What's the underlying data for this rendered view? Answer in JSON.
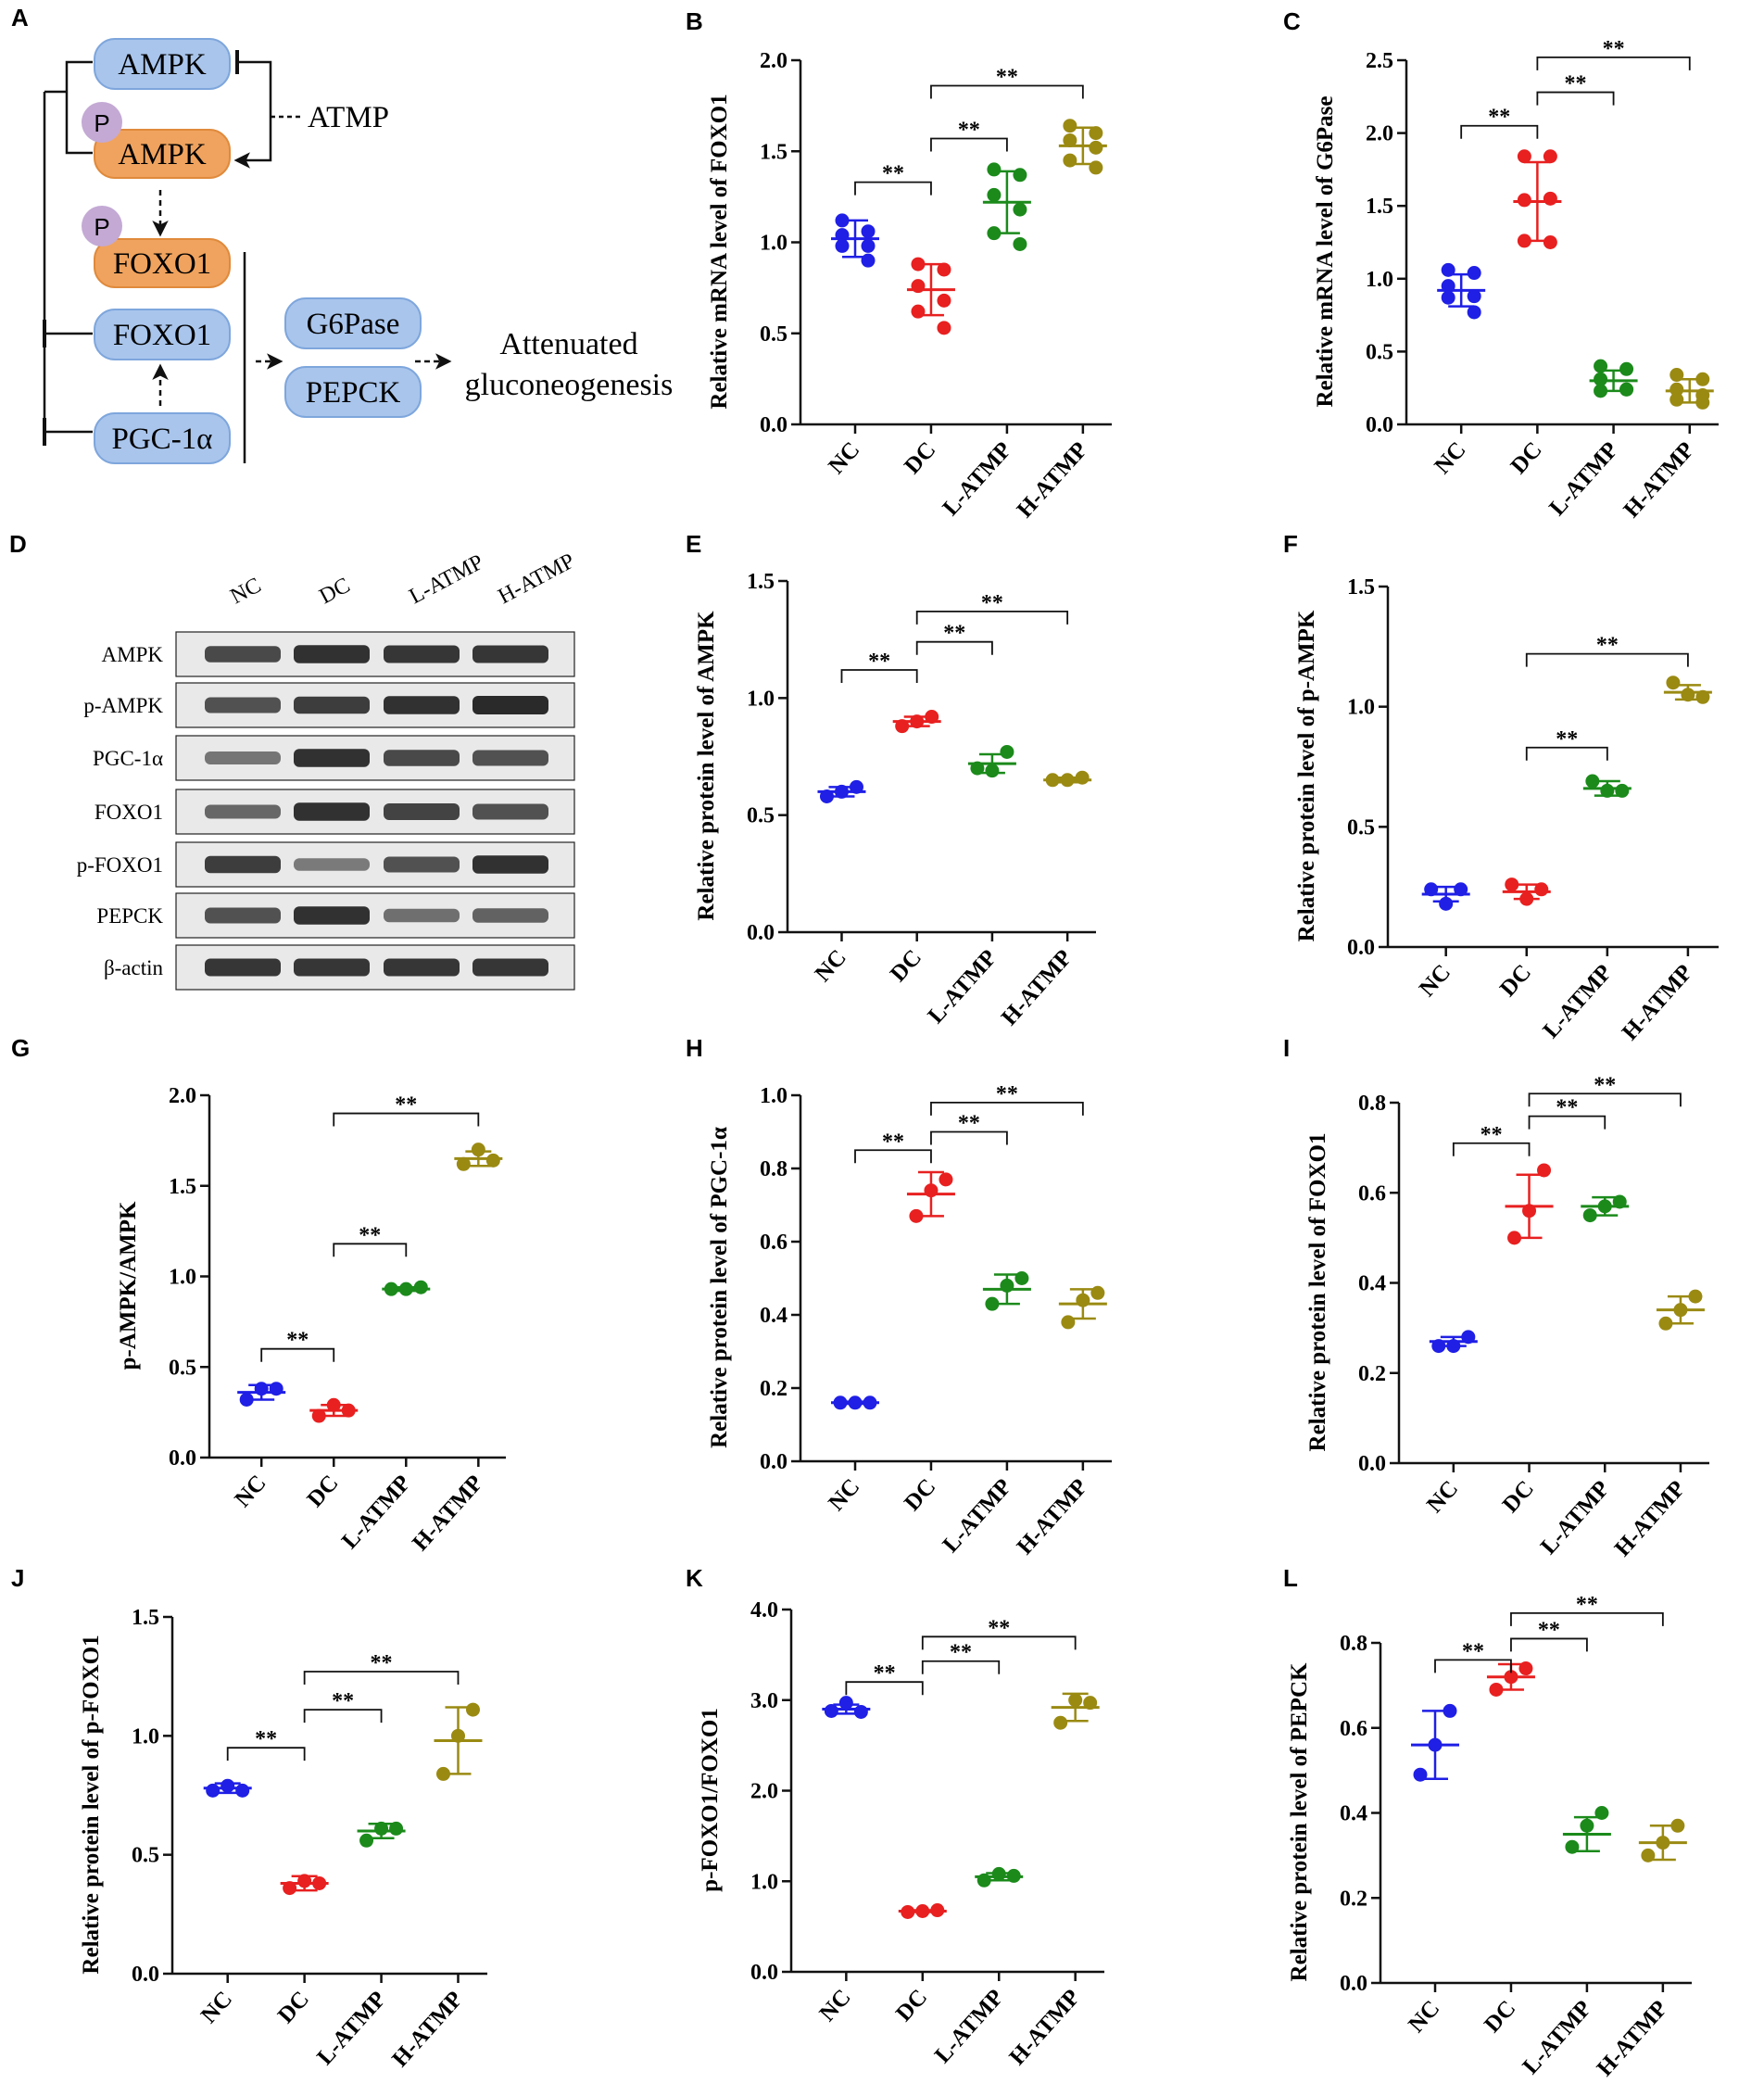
{
  "colors": {
    "nc": "#1f1fe6",
    "dc": "#e82020",
    "latmp": "#1b8a1b",
    "hatmp": "#9a8a12",
    "blue_node": "#a9c5ec",
    "blue_node_edge": "#7ea6dc",
    "orange_node": "#f0a35e",
    "orange_node_edge": "#e08a3c",
    "phospho": "#c3a9d4",
    "blot_bg": "#e9e9e9",
    "band": "#2a2a2a"
  },
  "panel_a": {
    "letter": "A",
    "nodes": {
      "ampk": "AMPK",
      "p_ampk": "AMPK",
      "foxo1_p": "FOXO1",
      "foxo1": "FOXO1",
      "pgc": "PGC-1α",
      "g6pase": "G6Pase",
      "pepck": "PEPCK"
    },
    "phospho_label": "P",
    "atmp": "ATMP",
    "outcome_line1": "Attenuated",
    "outcome_line2": "gluconeogenesis"
  },
  "panel_d": {
    "letter": "D",
    "groups": [
      "NC",
      "DC",
      "L-ATMP",
      "H-ATMP"
    ],
    "rows": [
      "AMPK",
      "p-AMPK",
      "PGC-1α",
      "FOXO1",
      "p-FOXO1",
      "PEPCK",
      "β-actin"
    ],
    "band_intensity": [
      [
        0.75,
        0.95,
        0.9,
        0.9
      ],
      [
        0.7,
        0.85,
        0.95,
        1.0
      ],
      [
        0.4,
        0.95,
        0.75,
        0.7
      ],
      [
        0.5,
        0.95,
        0.8,
        0.7
      ],
      [
        0.85,
        0.35,
        0.7,
        0.95
      ],
      [
        0.7,
        0.95,
        0.45,
        0.55
      ],
      [
        0.9,
        0.9,
        0.9,
        0.9
      ]
    ]
  },
  "chart_data": [
    {
      "type": "scatter",
      "letter": "B",
      "ylabel": "Relative mRNA level of FOXO1",
      "categories": [
        "NC",
        "DC",
        "L-ATMP",
        "H-ATMP"
      ],
      "ylim": [
        0,
        2.0
      ],
      "ticks": [
        "0.0",
        "0.5",
        "1.0",
        "1.5",
        "2.0"
      ],
      "means": [
        1.02,
        0.74,
        1.22,
        1.53
      ],
      "sd": [
        0.1,
        0.14,
        0.17,
        0.1
      ],
      "points": [
        [
          1.12,
          1.06,
          1.04,
          0.98,
          0.98,
          0.9
        ],
        [
          0.88,
          0.85,
          0.76,
          0.68,
          0.62,
          0.53
        ],
        [
          1.4,
          1.37,
          1.26,
          1.18,
          1.05,
          0.99
        ],
        [
          1.64,
          1.6,
          1.56,
          1.52,
          1.45,
          1.41
        ]
      ],
      "sig": [
        {
          "from": 0,
          "to": 1,
          "label": "**",
          "y": 1.33
        },
        {
          "from": 1,
          "to": 2,
          "label": "**",
          "y": 1.57
        },
        {
          "from": 1,
          "to": 3,
          "label": "**",
          "y": 1.86
        }
      ]
    },
    {
      "type": "scatter",
      "letter": "C",
      "ylabel": "Relative mRNA level of G6Pase",
      "categories": [
        "NC",
        "DC",
        "L-ATMP",
        "H-ATMP"
      ],
      "ylim": [
        0,
        2.5
      ],
      "ticks": [
        "0.0",
        "0.5",
        "1.0",
        "1.5",
        "2.0",
        "2.5"
      ],
      "means": [
        0.92,
        1.53,
        0.3,
        0.23
      ],
      "sd": [
        0.11,
        0.27,
        0.07,
        0.08
      ],
      "points": [
        [
          1.06,
          1.04,
          0.95,
          0.88,
          0.87,
          0.77
        ],
        [
          1.84,
          1.84,
          1.54,
          1.55,
          1.26,
          1.25
        ],
        [
          0.4,
          0.38,
          0.31,
          0.24,
          0.23,
          0.24
        ],
        [
          0.34,
          0.31,
          0.24,
          0.2,
          0.17,
          0.15
        ]
      ],
      "sig": [
        {
          "from": 0,
          "to": 1,
          "label": "**",
          "y": 2.05
        },
        {
          "from": 1,
          "to": 2,
          "label": "**",
          "y": 2.28
        },
        {
          "from": 1,
          "to": 3,
          "label": "**",
          "y": 2.52
        }
      ]
    },
    {
      "type": "scatter",
      "letter": "E",
      "ylabel": "Relative protein level of AMPK",
      "categories": [
        "NC",
        "DC",
        "L-ATMP",
        "H-ATMP"
      ],
      "ylim": [
        0,
        1.5
      ],
      "ticks": [
        "0.0",
        "0.5",
        "1.0",
        "1.5"
      ],
      "means": [
        0.6,
        0.9,
        0.72,
        0.65
      ],
      "sd": [
        0.02,
        0.02,
        0.04,
        0.01
      ],
      "points": [
        [
          0.58,
          0.6,
          0.62
        ],
        [
          0.88,
          0.9,
          0.92
        ],
        [
          0.7,
          0.69,
          0.77
        ],
        [
          0.65,
          0.65,
          0.66
        ]
      ],
      "sig": [
        {
          "from": 0,
          "to": 1,
          "label": "**",
          "y": 1.12
        },
        {
          "from": 1,
          "to": 2,
          "label": "**",
          "y": 1.24
        },
        {
          "from": 1,
          "to": 3,
          "label": "**",
          "y": 1.37
        }
      ]
    },
    {
      "type": "scatter",
      "letter": "F",
      "ylabel": "Relative protein level of p-AMPK",
      "categories": [
        "NC",
        "DC",
        "L-ATMP",
        "H-ATMP"
      ],
      "ylim": [
        0,
        1.5
      ],
      "ticks": [
        "0.0",
        "0.5",
        "1.0",
        "1.5"
      ],
      "means": [
        0.22,
        0.23,
        0.66,
        1.06
      ],
      "sd": [
        0.03,
        0.03,
        0.03,
        0.03
      ],
      "points": [
        [
          0.24,
          0.18,
          0.24
        ],
        [
          0.26,
          0.2,
          0.24
        ],
        [
          0.69,
          0.65,
          0.65
        ],
        [
          1.1,
          1.05,
          1.04
        ]
      ],
      "sig": [
        {
          "from": 1,
          "to": 2,
          "label": "**",
          "y": 0.83
        },
        {
          "from": 1,
          "to": 3,
          "label": "**",
          "y": 1.22
        }
      ]
    },
    {
      "type": "scatter",
      "letter": "G",
      "ylabel": "p-AMPK/AMPK",
      "categories": [
        "NC",
        "DC",
        "L-ATMP",
        "H-ATMP"
      ],
      "ylim": [
        0,
        2.0
      ],
      "ticks": [
        "0.0",
        "0.5",
        "1.0",
        "1.5",
        "2.0"
      ],
      "means": [
        0.36,
        0.26,
        0.93,
        1.65
      ],
      "sd": [
        0.04,
        0.03,
        0.01,
        0.04
      ],
      "points": [
        [
          0.32,
          0.38,
          0.38
        ],
        [
          0.23,
          0.29,
          0.26
        ],
        [
          0.93,
          0.93,
          0.94
        ],
        [
          1.62,
          1.7,
          1.64
        ]
      ],
      "sig": [
        {
          "from": 0,
          "to": 1,
          "label": "**",
          "y": 0.6
        },
        {
          "from": 1,
          "to": 2,
          "label": "**",
          "y": 1.18
        },
        {
          "from": 1,
          "to": 3,
          "label": "**",
          "y": 1.9
        }
      ]
    },
    {
      "type": "scatter",
      "letter": "H",
      "ylabel": "Relative protein level of PGC-1α",
      "categories": [
        "NC",
        "DC",
        "L-ATMP",
        "H-ATMP"
      ],
      "ylim": [
        0,
        1.0
      ],
      "ticks": [
        "0.0",
        "0.2",
        "0.4",
        "0.6",
        "0.8",
        "1.0"
      ],
      "means": [
        0.16,
        0.73,
        0.47,
        0.43
      ],
      "sd": [
        0.003,
        0.06,
        0.04,
        0.04
      ],
      "points": [
        [
          0.16,
          0.16,
          0.16
        ],
        [
          0.67,
          0.74,
          0.77
        ],
        [
          0.43,
          0.48,
          0.5
        ],
        [
          0.38,
          0.44,
          0.46
        ]
      ],
      "sig": [
        {
          "from": 0,
          "to": 1,
          "label": "**",
          "y": 0.85
        },
        {
          "from": 1,
          "to": 2,
          "label": "**",
          "y": 0.9
        },
        {
          "from": 1,
          "to": 3,
          "label": "**",
          "y": 0.98
        }
      ]
    },
    {
      "type": "scatter",
      "letter": "I",
      "ylabel": "Relative protein level of FOXO1",
      "categories": [
        "NC",
        "DC",
        "L-ATMP",
        "H-ATMP"
      ],
      "ylim": [
        0,
        0.8
      ],
      "ticks": [
        "0.0",
        "0.2",
        "0.4",
        "0.6",
        "0.8"
      ],
      "means": [
        0.27,
        0.57,
        0.57,
        0.34
      ],
      "sd": [
        0.01,
        0.07,
        0.02,
        0.03
      ],
      "points": [
        [
          0.26,
          0.26,
          0.28
        ],
        [
          0.5,
          0.56,
          0.65
        ],
        [
          0.55,
          0.57,
          0.58
        ],
        [
          0.31,
          0.34,
          0.37
        ]
      ],
      "sig": [
        {
          "from": 0,
          "to": 1,
          "label": "**",
          "y": 0.71
        },
        {
          "from": 1,
          "to": 2,
          "label": "**",
          "y": 0.77
        },
        {
          "from": 1,
          "to": 3,
          "label": "**",
          "y": 0.82
        }
      ]
    },
    {
      "type": "scatter",
      "letter": "J",
      "ylabel": "Relative protein level of p-FOXO1",
      "categories": [
        "NC",
        "DC",
        "L-ATMP",
        "H-ATMP"
      ],
      "ylim": [
        0,
        1.5
      ],
      "ticks": [
        "0.0",
        "0.5",
        "1.0",
        "1.5"
      ],
      "means": [
        0.78,
        0.38,
        0.6,
        0.98
      ],
      "sd": [
        0.02,
        0.03,
        0.03,
        0.14
      ],
      "points": [
        [
          0.77,
          0.79,
          0.77
        ],
        [
          0.36,
          0.39,
          0.38
        ],
        [
          0.56,
          0.61,
          0.61
        ],
        [
          0.84,
          1.0,
          1.11
        ]
      ],
      "sig": [
        {
          "from": 0,
          "to": 1,
          "label": "**",
          "y": 0.95
        },
        {
          "from": 1,
          "to": 2,
          "label": "**",
          "y": 1.11
        },
        {
          "from": 1,
          "to": 3,
          "label": "**",
          "y": 1.27
        }
      ]
    },
    {
      "type": "scatter",
      "letter": "K",
      "ylabel": "p-FOXO1/FOXO1",
      "categories": [
        "NC",
        "DC",
        "L-ATMP",
        "H-ATMP"
      ],
      "ylim": [
        0,
        4.0
      ],
      "ticks": [
        "0.0",
        "1.0",
        "2.0",
        "3.0",
        "4.0"
      ],
      "means": [
        2.9,
        0.67,
        1.05,
        2.92
      ],
      "sd": [
        0.05,
        0.01,
        0.04,
        0.15
      ],
      "points": [
        [
          2.88,
          2.97,
          2.87
        ],
        [
          0.66,
          0.67,
          0.68
        ],
        [
          1.01,
          1.08,
          1.06
        ],
        [
          2.75,
          3.0,
          2.97
        ]
      ],
      "sig": [
        {
          "from": 0,
          "to": 1,
          "label": "**",
          "y": 3.2
        },
        {
          "from": 1,
          "to": 2,
          "label": "**",
          "y": 3.43
        },
        {
          "from": 1,
          "to": 3,
          "label": "**",
          "y": 3.7
        }
      ]
    },
    {
      "type": "scatter",
      "letter": "L",
      "ylabel": "Relative protein level of PEPCK",
      "categories": [
        "NC",
        "DC",
        "L-ATMP",
        "H-ATMP"
      ],
      "ylim": [
        0,
        0.8
      ],
      "ticks": [
        "0.0",
        "0.2",
        "0.4",
        "0.6",
        "0.8"
      ],
      "means": [
        0.56,
        0.72,
        0.35,
        0.33
      ],
      "sd": [
        0.08,
        0.03,
        0.04,
        0.04
      ],
      "points": [
        [
          0.49,
          0.56,
          0.64
        ],
        [
          0.69,
          0.72,
          0.74
        ],
        [
          0.32,
          0.37,
          0.4
        ],
        [
          0.3,
          0.33,
          0.37
        ]
      ],
      "sig": [
        {
          "from": 0,
          "to": 1,
          "label": "**",
          "y": 0.76
        },
        {
          "from": 1,
          "to": 2,
          "label": "**",
          "y": 0.81
        },
        {
          "from": 1,
          "to": 3,
          "label": "**",
          "y": 0.87
        }
      ]
    }
  ]
}
